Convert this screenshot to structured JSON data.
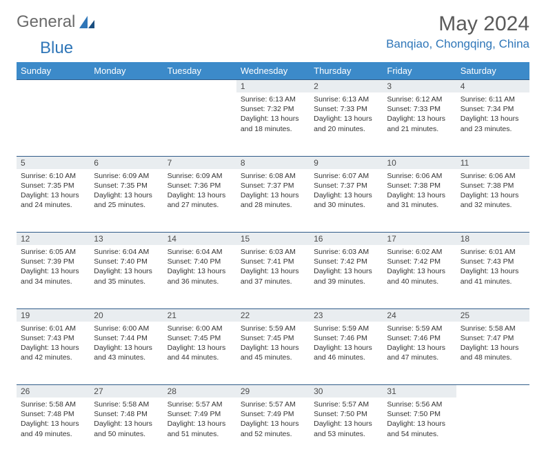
{
  "brand": {
    "text1": "General",
    "text2": "Blue"
  },
  "title": "May 2024",
  "location": "Banqiao, Chongqing, China",
  "day_headers": [
    "Sunday",
    "Monday",
    "Tuesday",
    "Wednesday",
    "Thursday",
    "Friday",
    "Saturday"
  ],
  "colors": {
    "header_bg": "#3c8ac9",
    "header_text": "#ffffff",
    "daynum_bg": "#e9edf0",
    "border": "#2f5b88",
    "accent": "#2f76b8"
  },
  "weeks": [
    [
      null,
      null,
      null,
      {
        "d": "1",
        "sr": "6:13 AM",
        "ss": "7:32 PM",
        "dl": "13 hours and 18 minutes."
      },
      {
        "d": "2",
        "sr": "6:13 AM",
        "ss": "7:33 PM",
        "dl": "13 hours and 20 minutes."
      },
      {
        "d": "3",
        "sr": "6:12 AM",
        "ss": "7:33 PM",
        "dl": "13 hours and 21 minutes."
      },
      {
        "d": "4",
        "sr": "6:11 AM",
        "ss": "7:34 PM",
        "dl": "13 hours and 23 minutes."
      }
    ],
    [
      {
        "d": "5",
        "sr": "6:10 AM",
        "ss": "7:35 PM",
        "dl": "13 hours and 24 minutes."
      },
      {
        "d": "6",
        "sr": "6:09 AM",
        "ss": "7:35 PM",
        "dl": "13 hours and 25 minutes."
      },
      {
        "d": "7",
        "sr": "6:09 AM",
        "ss": "7:36 PM",
        "dl": "13 hours and 27 minutes."
      },
      {
        "d": "8",
        "sr": "6:08 AM",
        "ss": "7:37 PM",
        "dl": "13 hours and 28 minutes."
      },
      {
        "d": "9",
        "sr": "6:07 AM",
        "ss": "7:37 PM",
        "dl": "13 hours and 30 minutes."
      },
      {
        "d": "10",
        "sr": "6:06 AM",
        "ss": "7:38 PM",
        "dl": "13 hours and 31 minutes."
      },
      {
        "d": "11",
        "sr": "6:06 AM",
        "ss": "7:38 PM",
        "dl": "13 hours and 32 minutes."
      }
    ],
    [
      {
        "d": "12",
        "sr": "6:05 AM",
        "ss": "7:39 PM",
        "dl": "13 hours and 34 minutes."
      },
      {
        "d": "13",
        "sr": "6:04 AM",
        "ss": "7:40 PM",
        "dl": "13 hours and 35 minutes."
      },
      {
        "d": "14",
        "sr": "6:04 AM",
        "ss": "7:40 PM",
        "dl": "13 hours and 36 minutes."
      },
      {
        "d": "15",
        "sr": "6:03 AM",
        "ss": "7:41 PM",
        "dl": "13 hours and 37 minutes."
      },
      {
        "d": "16",
        "sr": "6:03 AM",
        "ss": "7:42 PM",
        "dl": "13 hours and 39 minutes."
      },
      {
        "d": "17",
        "sr": "6:02 AM",
        "ss": "7:42 PM",
        "dl": "13 hours and 40 minutes."
      },
      {
        "d": "18",
        "sr": "6:01 AM",
        "ss": "7:43 PM",
        "dl": "13 hours and 41 minutes."
      }
    ],
    [
      {
        "d": "19",
        "sr": "6:01 AM",
        "ss": "7:43 PM",
        "dl": "13 hours and 42 minutes."
      },
      {
        "d": "20",
        "sr": "6:00 AM",
        "ss": "7:44 PM",
        "dl": "13 hours and 43 minutes."
      },
      {
        "d": "21",
        "sr": "6:00 AM",
        "ss": "7:45 PM",
        "dl": "13 hours and 44 minutes."
      },
      {
        "d": "22",
        "sr": "5:59 AM",
        "ss": "7:45 PM",
        "dl": "13 hours and 45 minutes."
      },
      {
        "d": "23",
        "sr": "5:59 AM",
        "ss": "7:46 PM",
        "dl": "13 hours and 46 minutes."
      },
      {
        "d": "24",
        "sr": "5:59 AM",
        "ss": "7:46 PM",
        "dl": "13 hours and 47 minutes."
      },
      {
        "d": "25",
        "sr": "5:58 AM",
        "ss": "7:47 PM",
        "dl": "13 hours and 48 minutes."
      }
    ],
    [
      {
        "d": "26",
        "sr": "5:58 AM",
        "ss": "7:48 PM",
        "dl": "13 hours and 49 minutes."
      },
      {
        "d": "27",
        "sr": "5:58 AM",
        "ss": "7:48 PM",
        "dl": "13 hours and 50 minutes."
      },
      {
        "d": "28",
        "sr": "5:57 AM",
        "ss": "7:49 PM",
        "dl": "13 hours and 51 minutes."
      },
      {
        "d": "29",
        "sr": "5:57 AM",
        "ss": "7:49 PM",
        "dl": "13 hours and 52 minutes."
      },
      {
        "d": "30",
        "sr": "5:57 AM",
        "ss": "7:50 PM",
        "dl": "13 hours and 53 minutes."
      },
      {
        "d": "31",
        "sr": "5:56 AM",
        "ss": "7:50 PM",
        "dl": "13 hours and 54 minutes."
      },
      null
    ]
  ],
  "labels": {
    "sunrise": "Sunrise:",
    "sunset": "Sunset:",
    "daylight": "Daylight:"
  }
}
